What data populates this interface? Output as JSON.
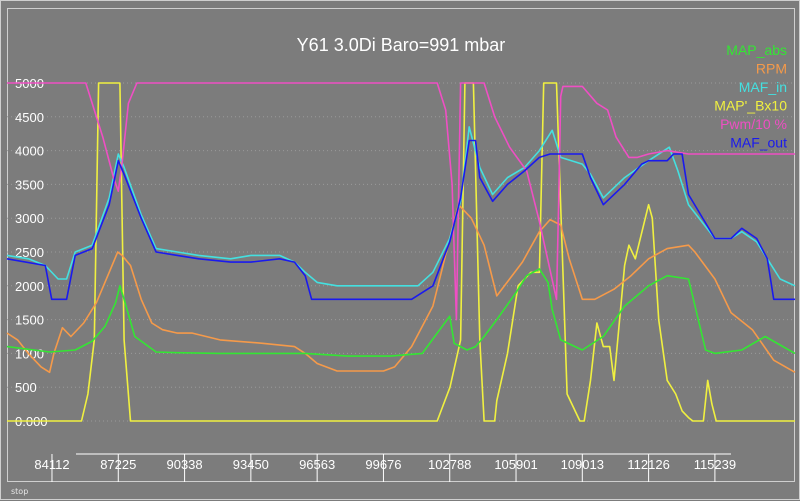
{
  "chart_data": {
    "type": "line",
    "title": "Y61 3.0Di Baro=991 mbar",
    "x_tick_labels": [
      "84112",
      "87225",
      "90338",
      "93450",
      "96563",
      "99676",
      "102788",
      "105901",
      "109013",
      "112126",
      "115239"
    ],
    "xlim": [
      82000,
      119000
    ],
    "y_tick_labels": [
      "0.000",
      "500",
      "1000",
      "1500",
      "2000",
      "2500",
      "3000",
      "3500",
      "4000",
      "4500",
      "5000"
    ],
    "ylim": [
      0,
      5000
    ],
    "grid": true,
    "legend_position": "top-right",
    "series": [
      {
        "name": "MAP_abs",
        "color": "#33e633",
        "x": [
          82000,
          84000,
          85200,
          86000,
          86600,
          87100,
          87300,
          87500,
          88000,
          89000,
          90000,
          92000,
          94000,
          96000,
          98000,
          100000,
          101500,
          102200,
          102788,
          103000,
          103600,
          104000,
          104400,
          105000,
          105901,
          106400,
          107000,
          107400,
          107600,
          108000,
          109013,
          110000,
          111000,
          112126,
          113000,
          114000,
          114800,
          115239,
          116500,
          117600,
          119000
        ],
        "values": [
          1100,
          1020,
          1050,
          1180,
          1400,
          1750,
          2000,
          1800,
          1250,
          1020,
          1010,
          1000,
          1000,
          1000,
          960,
          960,
          1000,
          1300,
          1550,
          1150,
          1050,
          1100,
          1250,
          1500,
          1900,
          2150,
          2250,
          2050,
          1650,
          1200,
          1050,
          1250,
          1700,
          2000,
          2150,
          2100,
          1050,
          1000,
          1050,
          1250,
          1000
        ]
      },
      {
        "name": "RPM",
        "color": "#f59a4a",
        "x": [
          82000,
          82500,
          83000,
          83600,
          84000,
          84200,
          84600,
          85000,
          85600,
          86200,
          86800,
          87200,
          87400,
          87800,
          88300,
          88800,
          89300,
          90000,
          90700,
          92000,
          94000,
          95500,
          96000,
          96563,
          97500,
          98500,
          99676,
          100200,
          101000,
          102000,
          102788,
          103200,
          103800,
          104400,
          105000,
          105600,
          106200,
          107000,
          107500,
          108000,
          108400,
          109013,
          109600,
          110500,
          111300,
          112126,
          113000,
          114000,
          114300,
          115239,
          116000,
          117000,
          118000,
          119000
        ],
        "values": [
          1300,
          1200,
          1000,
          800,
          720,
          1000,
          1380,
          1250,
          1450,
          1750,
          2200,
          2500,
          2450,
          2300,
          1800,
          1450,
          1350,
          1300,
          1300,
          1200,
          1150,
          1100,
          1000,
          850,
          740,
          740,
          740,
          800,
          1100,
          1700,
          2700,
          3200,
          3000,
          2600,
          1850,
          2100,
          2350,
          2800,
          2980,
          2900,
          2400,
          1800,
          1800,
          1950,
          2150,
          2400,
          2550,
          2600,
          2500,
          2100,
          1600,
          1350,
          900,
          720
        ]
      },
      {
        "name": "MAF_in",
        "color": "#44e0e0",
        "x": [
          82000,
          83000,
          83800,
          84400,
          84800,
          85200,
          86000,
          86800,
          87225,
          87500,
          88300,
          89000,
          90000,
          91000,
          92500,
          93450,
          94800,
          95500,
          96000,
          96563,
          97500,
          98800,
          99676,
          100500,
          101300,
          102000,
          102788,
          103300,
          103700,
          104200,
          104800,
          105500,
          106300,
          107000,
          107600,
          108000,
          109013,
          109400,
          110000,
          111000,
          112126,
          113100,
          113500,
          114000,
          115239,
          116000,
          116500,
          117200,
          117700,
          118300,
          119000
        ],
        "values": [
          2450,
          2400,
          2300,
          2100,
          2100,
          2500,
          2600,
          3300,
          3950,
          3750,
          3050,
          2550,
          2500,
          2450,
          2400,
          2450,
          2450,
          2350,
          2200,
          2050,
          2000,
          2000,
          2000,
          2000,
          2000,
          2200,
          2700,
          3250,
          4350,
          3750,
          3350,
          3600,
          3750,
          4000,
          4300,
          3900,
          3800,
          3650,
          3300,
          3600,
          3850,
          4050,
          3700,
          3200,
          2700,
          2700,
          2800,
          2650,
          2400,
          2100,
          2000
        ]
      },
      {
        "name": "MAP'_Bx10",
        "color": "#f0f040",
        "x": [
          82000,
          85500,
          85800,
          86100,
          86300,
          86500,
          87300,
          87500,
          87800,
          100000,
          101500,
          102200,
          102800,
          103300,
          103500,
          103700,
          103900,
          104200,
          104400,
          104900,
          105000,
          105500,
          106000,
          106600,
          107000,
          107200,
          107600,
          107800,
          108300,
          108900,
          109100,
          109400,
          109700,
          110000,
          110300,
          110500,
          111000,
          111200,
          111500,
          112126,
          112300,
          112600,
          113000,
          113400,
          113700,
          114000,
          114200,
          114700,
          114900,
          115100,
          115300,
          119000
        ],
        "values": [
          0,
          0,
          400,
          1200,
          5000,
          5000,
          5000,
          1200,
          0,
          0,
          0,
          0,
          500,
          1200,
          5000,
          5000,
          5000,
          1200,
          0,
          0,
          300,
          1000,
          2000,
          2200,
          2200,
          5000,
          5000,
          5000,
          400,
          0,
          0,
          600,
          1450,
          1100,
          1100,
          600,
          2300,
          2600,
          2400,
          3200,
          3000,
          1500,
          600,
          400,
          150,
          50,
          0,
          0,
          600,
          250,
          0,
          0
        ]
      },
      {
        "name": "Pwm/10 %",
        "color": "#ef4fc4",
        "x": [
          82000,
          85700,
          86500,
          87000,
          87225,
          87400,
          87700,
          88100,
          102200,
          102600,
          102900,
          103100,
          103300,
          104400,
          104900,
          105600,
          106400,
          107000,
          107800,
          107900,
          108000,
          108100,
          108600,
          109013,
          109700,
          110200,
          110600,
          111200,
          111600,
          112126,
          113000,
          114000,
          119000
        ],
        "values": [
          5000,
          5000,
          4200,
          3600,
          3400,
          3800,
          4700,
          5000,
          5000,
          4600,
          3500,
          1500,
          5000,
          5000,
          4500,
          4050,
          3700,
          2950,
          1800,
          3200,
          4800,
          4950,
          4950,
          4950,
          4700,
          4600,
          4200,
          3900,
          3900,
          3950,
          4000,
          3950,
          3950
        ]
      },
      {
        "name": "MAF_out",
        "color": "#1a1aee",
        "x": [
          82000,
          83800,
          84100,
          84400,
          84800,
          85200,
          86000,
          86800,
          87225,
          87500,
          88300,
          89000,
          90000,
          91000,
          92500,
          93450,
          94800,
          95500,
          96000,
          96300,
          97500,
          99676,
          101000,
          102000,
          102788,
          103300,
          103700,
          104000,
          104200,
          104800,
          105500,
          106300,
          107000,
          107500,
          108300,
          109013,
          109400,
          110000,
          111000,
          111800,
          112126,
          113000,
          113300,
          113700,
          114000,
          115239,
          116000,
          116500,
          117200,
          117700,
          118000,
          119000
        ],
        "values": [
          2400,
          2300,
          1800,
          1800,
          1800,
          2450,
          2550,
          3200,
          3850,
          3650,
          3000,
          2500,
          2450,
          2400,
          2350,
          2350,
          2400,
          2350,
          2150,
          1800,
          1800,
          1800,
          1800,
          2000,
          2650,
          3300,
          4150,
          4150,
          3600,
          3250,
          3500,
          3700,
          3900,
          3950,
          3950,
          3950,
          3600,
          3200,
          3500,
          3800,
          3850,
          3850,
          3950,
          3950,
          3350,
          2700,
          2700,
          2850,
          2700,
          2400,
          1800,
          1800
        ]
      }
    ]
  },
  "status_text": "stop"
}
